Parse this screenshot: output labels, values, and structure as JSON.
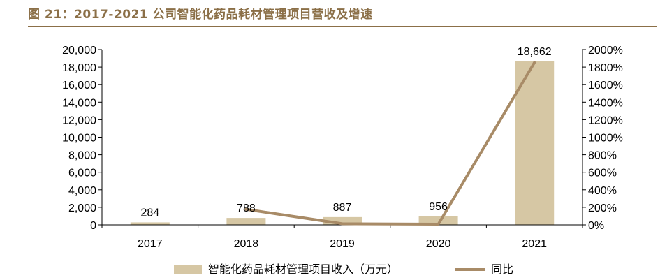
{
  "title": "图 21：2017-2021 公司智能化药品耗材管理项目营收及增速",
  "chart_data": {
    "type": "bar",
    "categories": [
      "2017",
      "2018",
      "2019",
      "2020",
      "2021"
    ],
    "series": [
      {
        "name": "智能化药品耗材管理项目收入（万元）",
        "type": "bar",
        "axis": "left",
        "values": [
          284,
          788,
          887,
          956,
          18662
        ],
        "data_labels": [
          "284",
          "788",
          "887",
          "956",
          "18,662"
        ],
        "color": "#d6c7a4"
      },
      {
        "name": "同比",
        "type": "line",
        "axis": "right",
        "values": [
          null,
          177,
          13,
          8,
          1852
        ],
        "color": "#a88b67"
      }
    ],
    "y_left": {
      "ylim": [
        0,
        20000
      ],
      "ticks": [
        0,
        2000,
        4000,
        6000,
        8000,
        10000,
        12000,
        14000,
        16000,
        18000,
        20000
      ],
      "tick_labels": [
        "0",
        "2,000",
        "4,000",
        "6,000",
        "8,000",
        "10,000",
        "12,000",
        "14,000",
        "16,000",
        "18,000",
        "20,000"
      ]
    },
    "y_right": {
      "ylim": [
        0,
        2000
      ],
      "ticks": [
        0,
        200,
        400,
        600,
        800,
        1000,
        1200,
        1400,
        1600,
        1800,
        2000
      ],
      "tick_labels": [
        "0%",
        "200%",
        "400%",
        "600%",
        "800%",
        "1000%",
        "1200%",
        "1400%",
        "1600%",
        "1800%",
        "2000%"
      ]
    },
    "grid": false,
    "legend_position": "bottom"
  }
}
